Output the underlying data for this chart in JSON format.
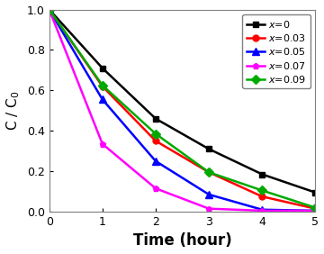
{
  "title": "",
  "xlabel": "Time (hour)",
  "xlim": [
    0,
    5
  ],
  "ylim": [
    0,
    1.0
  ],
  "series": [
    {
      "label": "x=0",
      "color": "#000000",
      "marker": "s",
      "x": [
        0,
        1,
        2,
        3,
        4,
        5
      ],
      "y": [
        1.0,
        0.71,
        0.46,
        0.31,
        0.185,
        0.095
      ]
    },
    {
      "label": "x=0.03",
      "color": "#ff0000",
      "marker": "o",
      "x": [
        0,
        1,
        2,
        3,
        4,
        5
      ],
      "y": [
        1.0,
        0.62,
        0.35,
        0.195,
        0.075,
        0.015
      ]
    },
    {
      "label": "x=0.05",
      "color": "#0000ff",
      "marker": "^",
      "x": [
        0,
        1,
        2,
        3,
        4,
        5
      ],
      "y": [
        1.0,
        0.555,
        0.25,
        0.085,
        0.01,
        0.005
      ]
    },
    {
      "label": "x=0.07",
      "color": "#ff00ff",
      "marker": "p",
      "x": [
        0,
        1,
        2,
        3,
        4,
        5
      ],
      "y": [
        1.0,
        0.335,
        0.115,
        0.015,
        0.005,
        0.005
      ]
    },
    {
      "label": "x=0.09",
      "color": "#00aa00",
      "marker": "D",
      "x": [
        0,
        1,
        2,
        3,
        4,
        5
      ],
      "y": [
        1.0,
        0.625,
        0.385,
        0.195,
        0.105,
        0.02
      ]
    }
  ],
  "legend_loc": "upper right",
  "xticks": [
    0,
    1,
    2,
    3,
    4,
    5
  ],
  "yticks": [
    0.0,
    0.2,
    0.4,
    0.6,
    0.8,
    1.0
  ],
  "background_color": "#ffffff",
  "xlabel_fontsize": 12,
  "ylabel_fontsize": 11,
  "tick_fontsize": 9,
  "legend_fontsize": 8,
  "linewidth": 1.8,
  "markersize": 5
}
